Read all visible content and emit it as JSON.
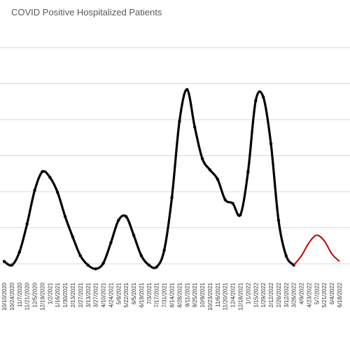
{
  "chart_data": {
    "type": "line",
    "title": "COVID Positive Hospitalized Patients",
    "xlabel": "",
    "ylabel": "",
    "grid": true,
    "legend": "none",
    "x_tick_labels": [
      "10/10/2020",
      "10/24/2020",
      "11/7/2020",
      "11/21/2020",
      "12/5/2020",
      "12/19/2020",
      "1/2/2021",
      "1/16/2021",
      "1/30/2021",
      "2/13/2021",
      "2/27/2021",
      "3/13/2021",
      "3/27/2021",
      "4/10/2021",
      "4/24/2021",
      "5/8/2021",
      "5/22/2021",
      "6/5/2021",
      "6/19/2021",
      "7/3/2021",
      "7/17/2021",
      "7/31/2021",
      "8/14/2021",
      "8/28/2021",
      "9/11/2021",
      "9/25/2021",
      "10/9/2021",
      "10/23/2021",
      "11/6/2021",
      "11/20/2021",
      "12/4/2021",
      "12/18/2021",
      "1/1/2022",
      "1/15/2022",
      "1/29/2022",
      "2/12/2022",
      "2/26/2022",
      "3/12/2022",
      "3/26/2022",
      "4/9/2022",
      "4/23/2022",
      "5/7/2022",
      "5/21/2022",
      "6/4/2022",
      "6/18/2022"
    ],
    "y_gridline_count": 7,
    "series": [
      {
        "role": "actual",
        "color": "#000000",
        "x": [
          "10/10/2020",
          "10/24/2020",
          "11/7/2020",
          "11/21/2020",
          "12/5/2020",
          "12/19/2020",
          "1/2/2021",
          "1/16/2021",
          "1/30/2021",
          "2/13/2021",
          "2/27/2021",
          "3/13/2021",
          "3/27/2021",
          "4/10/2021",
          "4/24/2021",
          "5/8/2021",
          "5/22/2021",
          "6/5/2021",
          "6/19/2021",
          "7/3/2021",
          "7/17/2021",
          "7/31/2021",
          "8/14/2021",
          "8/28/2021",
          "9/11/2021",
          "9/25/2021",
          "10/9/2021",
          "10/23/2021",
          "11/6/2021",
          "11/20/2021",
          "12/4/2021",
          "12/18/2021",
          "1/1/2022",
          "1/15/2022",
          "1/29/2022",
          "2/12/2022",
          "2/26/2022",
          "3/12/2022",
          "3/26/2022"
        ],
        "values": [
          0.08,
          0.06,
          0.13,
          0.28,
          0.46,
          0.56,
          0.53,
          0.45,
          0.32,
          0.21,
          0.11,
          0.06,
          0.04,
          0.07,
          0.18,
          0.3,
          0.32,
          0.22,
          0.11,
          0.06,
          0.05,
          0.14,
          0.42,
          0.83,
          1.0,
          0.8,
          0.63,
          0.57,
          0.52,
          0.41,
          0.39,
          0.33,
          0.56,
          0.94,
          0.96,
          0.71,
          0.3,
          0.11,
          0.06
        ]
      },
      {
        "role": "projection",
        "color": "#c00000",
        "x": [
          "3/26/2022",
          "4/9/2022",
          "4/23/2022",
          "5/7/2022",
          "5/21/2022",
          "6/4/2022",
          "6/18/2022"
        ],
        "values": [
          0.06,
          0.11,
          0.18,
          0.22,
          0.19,
          0.12,
          0.08
        ]
      }
    ]
  }
}
